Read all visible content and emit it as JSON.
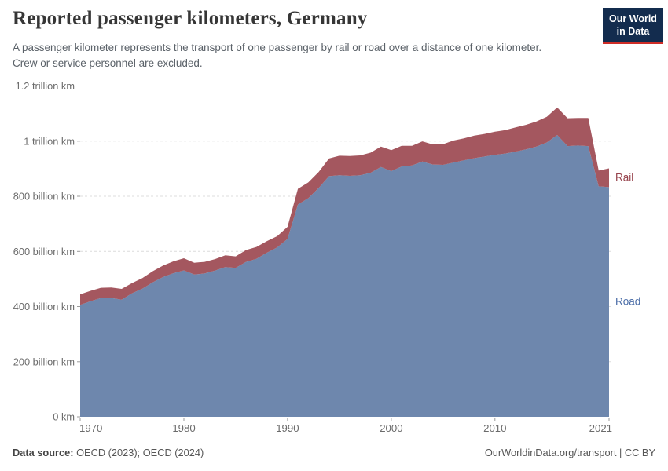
{
  "header": {
    "title": "Reported passenger kilometers, Germany",
    "subtitle": "A passenger kilometer represents the transport of one passenger by rail or road over a distance of one kilometer. Crew or service personnel are excluded.",
    "logo": {
      "line1": "Our World",
      "line2": "in Data",
      "bg_color": "#132c4e",
      "underline_color": "#cf2d27"
    }
  },
  "chart_data": {
    "type": "area",
    "stacked": true,
    "title": "Reported passenger kilometers, Germany",
    "xlabel": "",
    "ylabel": "passenger kilometers",
    "unit": "billion km",
    "grid": true,
    "legend_position": "right-inline",
    "ylim": [
      0,
      1200
    ],
    "x": [
      1970,
      1971,
      1972,
      1973,
      1974,
      1975,
      1976,
      1977,
      1978,
      1979,
      1980,
      1981,
      1982,
      1983,
      1984,
      1985,
      1986,
      1987,
      1988,
      1989,
      1990,
      1991,
      1992,
      1993,
      1994,
      1995,
      1996,
      1997,
      1998,
      1999,
      2000,
      2001,
      2002,
      2003,
      2004,
      2005,
      2006,
      2007,
      2008,
      2009,
      2010,
      2011,
      2012,
      2013,
      2014,
      2015,
      2016,
      2017,
      2018,
      2019,
      2020,
      2021
    ],
    "x_ticks": [
      1970,
      1980,
      1990,
      2000,
      2010,
      2021
    ],
    "y_ticks": [
      {
        "value": 0,
        "label": "0 km"
      },
      {
        "value": 200,
        "label": "200 billion km"
      },
      {
        "value": 400,
        "label": "400 billion km"
      },
      {
        "value": 600,
        "label": "600 billion km"
      },
      {
        "value": 800,
        "label": "800 billion km"
      },
      {
        "value": 1000,
        "label": "1 trillion km"
      },
      {
        "value": 1200,
        "label": "1.2 trillion km"
      }
    ],
    "series": [
      {
        "name": "Road",
        "color": "#6e87ad",
        "label_color": "#4c6ea8",
        "values": [
          406,
          419,
          431,
          431,
          425,
          448,
          465,
          488,
          507,
          521,
          531,
          516,
          520,
          530,
          543,
          540,
          562,
          573,
          595,
          614,
          645,
          770,
          793,
          830,
          873,
          876,
          874,
          876,
          885,
          906,
          891,
          908,
          912,
          926,
          915,
          914,
          922,
          930,
          938,
          944,
          950,
          955,
          962,
          970,
          980,
          995,
          1022,
          982,
          984,
          982,
          836,
          833
        ]
      },
      {
        "name": "Rail",
        "color": "#a4575f",
        "label_color": "#96424b",
        "values": [
          38,
          38,
          37,
          38,
          39,
          37,
          38,
          40,
          42,
          43,
          44,
          43,
          42,
          42,
          43,
          42,
          43,
          43,
          42,
          41,
          44,
          57,
          57,
          58,
          64,
          71,
          72,
          72,
          73,
          74,
          76,
          75,
          71,
          73,
          73,
          75,
          80,
          80,
          82,
          82,
          84,
          85,
          88,
          89,
          91,
          93,
          100,
          101,
          100,
          102,
          57,
          68
        ]
      }
    ],
    "colors": {
      "grid": "#dcdcdc",
      "tick": "#9b9b9b"
    }
  },
  "footer": {
    "source_label": "Data source:",
    "source_value": " OECD (2023); OECD (2024)",
    "right": "OurWorldinData.org/transport | CC BY"
  }
}
